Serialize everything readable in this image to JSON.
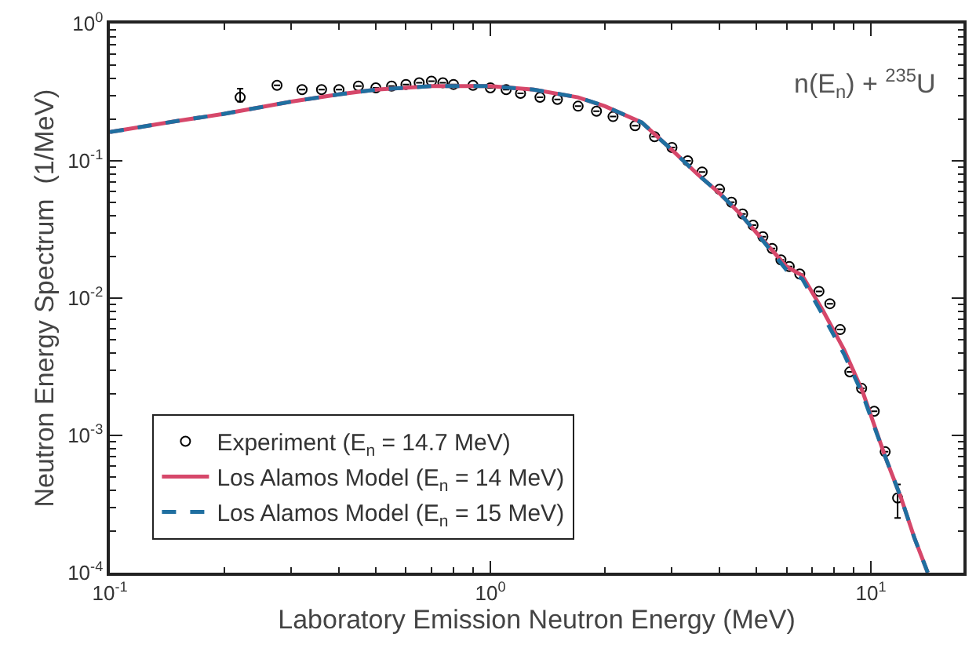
{
  "chart_data": {
    "type": "line",
    "xlabel": "Laboratory Emission Neutron Energy (MeV)",
    "ylabel": "Neutron Energy Spectrum  (1/MeV)",
    "log": "xy",
    "grid": false,
    "legend": "bottom left",
    "xlim": [
      0.1,
      17.5
    ],
    "ylim": [
      0.0001,
      1
    ],
    "xticks": [
      {
        "value": 0.1,
        "label": "10$^{-1}$"
      },
      {
        "value": 1,
        "label": "10$^{0}$"
      },
      {
        "value": 10,
        "label": "10$^{1}$"
      }
    ],
    "yticks": [
      {
        "value": 0.0001,
        "label": "10$^{-4}$"
      },
      {
        "value": 0.001,
        "label": "10$^{-3}$"
      },
      {
        "value": 0.01,
        "label": "10$^{-2}$"
      },
      {
        "value": 0.1,
        "label": "10$^{-1}$"
      },
      {
        "value": 1,
        "label": "10$^{0}$"
      }
    ],
    "annotations": [
      "n(E$_{n}$) + $^{235}$U"
    ],
    "series": [
      {
        "name": "Experiment (E$_{n}$ = 14.7 MeV)",
        "type": "scatter",
        "marker": "circle",
        "color": "#000000",
        "x": [
          0.22,
          0.275,
          0.32,
          0.36,
          0.4,
          0.45,
          0.5,
          0.55,
          0.6,
          0.65,
          0.7,
          0.75,
          0.8,
          0.9,
          1.0,
          1.1,
          1.2,
          1.35,
          1.5,
          1.7,
          1.9,
          2.1,
          2.4,
          2.7,
          3.0,
          3.3,
          3.6,
          4.0,
          4.3,
          4.6,
          4.9,
          5.2,
          5.5,
          5.8,
          6.1,
          6.5,
          7.3,
          7.8,
          8.3,
          8.8,
          9.45,
          10.2,
          10.9,
          11.75
        ],
        "values": [
          0.29,
          0.355,
          0.33,
          0.33,
          0.33,
          0.35,
          0.34,
          0.35,
          0.36,
          0.37,
          0.38,
          0.37,
          0.36,
          0.355,
          0.34,
          0.33,
          0.31,
          0.29,
          0.28,
          0.25,
          0.23,
          0.21,
          0.18,
          0.15,
          0.125,
          0.1,
          0.083,
          0.062,
          0.05,
          0.041,
          0.034,
          0.028,
          0.023,
          0.019,
          0.017,
          0.015,
          0.0112,
          0.0091,
          0.0059,
          0.0029,
          0.0022,
          0.0015,
          0.00076,
          0.00035
        ],
        "errors": [
          [
            0.27,
            0.335
          ],
          null,
          null,
          null,
          null,
          null,
          null,
          null,
          null,
          null,
          null,
          null,
          null,
          null,
          null,
          null,
          null,
          null,
          null,
          null,
          null,
          null,
          null,
          null,
          null,
          null,
          null,
          null,
          null,
          null,
          null,
          null,
          null,
          null,
          null,
          null,
          null,
          null,
          null,
          null,
          null,
          null,
          null,
          [
            0.00025,
            0.00044
          ]
        ]
      },
      {
        "name": "Los Alamos Model (E$_{n}$ = 14 MeV)",
        "line_style": "solid",
        "marker": "none",
        "color": "#d6476a",
        "x": [
          0.1,
          0.15,
          0.2,
          0.3,
          0.4,
          0.5,
          0.7,
          1.0,
          1.3,
          1.7,
          2.0,
          2.5,
          3.0,
          3.5,
          4.0,
          4.5,
          5.0,
          6.0,
          6.6,
          7.5,
          8.5,
          9.5,
          10.9,
          12.0,
          13.0,
          14.1
        ],
        "values": [
          0.162,
          0.195,
          0.22,
          0.27,
          0.305,
          0.33,
          0.35,
          0.35,
          0.33,
          0.29,
          0.25,
          0.19,
          0.12,
          0.08,
          0.058,
          0.042,
          0.03,
          0.017,
          0.0146,
          0.008,
          0.0042,
          0.0021,
          0.0007,
          0.00035,
          0.00018,
          0.0001
        ]
      },
      {
        "name": "Los Alamos Model (E$_{n}$ = 15 MeV)",
        "line_style": "dashed",
        "marker": "none",
        "color": "#1f6fa0",
        "x": [
          0.1,
          0.15,
          0.2,
          0.3,
          0.4,
          0.5,
          0.7,
          1.0,
          1.3,
          1.7,
          2.0,
          2.5,
          3.0,
          3.5,
          4.0,
          4.5,
          5.0,
          6.0,
          6.6,
          7.5,
          8.5,
          9.5,
          10.9,
          12.0,
          13.0,
          14.1
        ],
        "values": [
          0.162,
          0.195,
          0.22,
          0.27,
          0.305,
          0.33,
          0.35,
          0.35,
          0.33,
          0.29,
          0.25,
          0.19,
          0.12,
          0.08,
          0.058,
          0.042,
          0.03,
          0.016,
          0.0138,
          0.0074,
          0.0039,
          0.002,
          0.0007,
          0.00035,
          0.00018,
          0.0001
        ]
      }
    ]
  }
}
